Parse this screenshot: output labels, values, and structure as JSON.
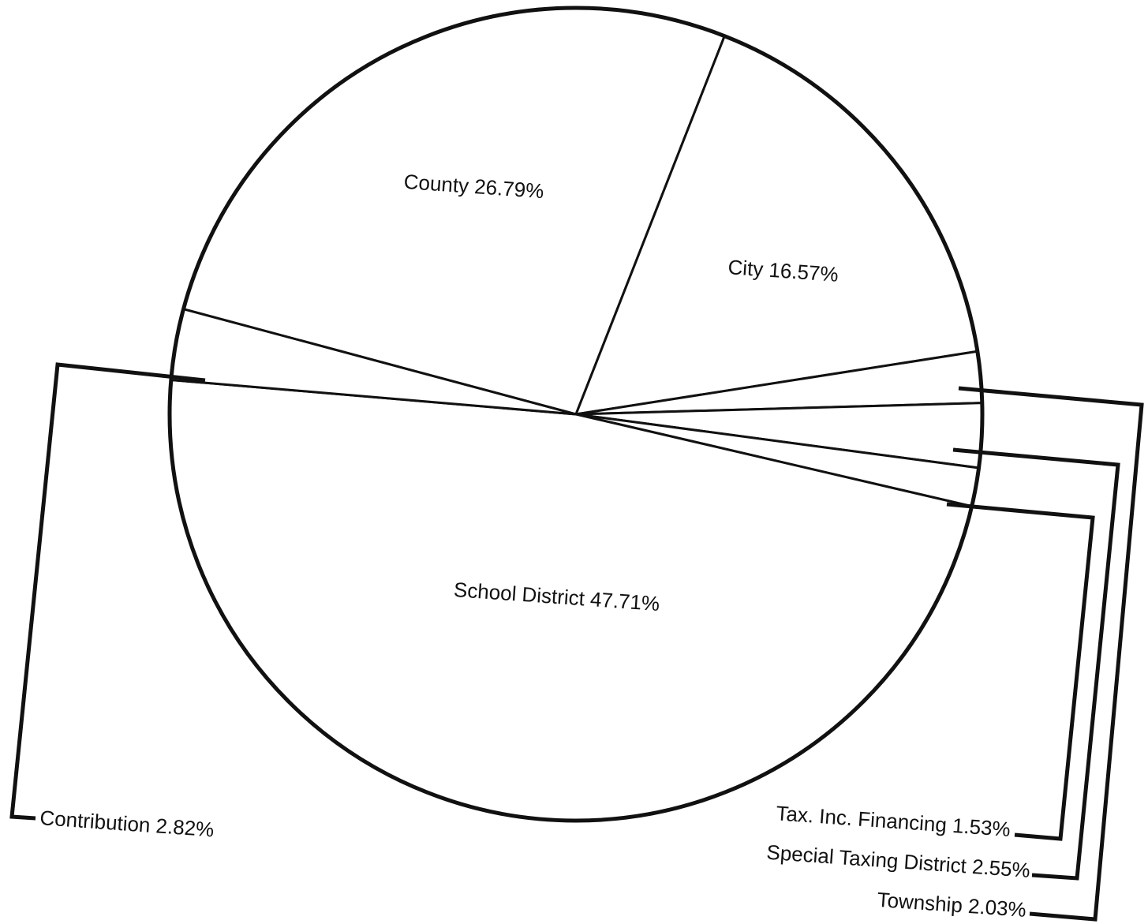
{
  "chart_data": {
    "type": "pie",
    "slices": [
      {
        "label": "County 26.79%",
        "name": "County",
        "value": 26.79
      },
      {
        "label": "City 16.57%",
        "name": "City",
        "value": 16.57
      },
      {
        "label": "Township 2.03%",
        "name": "Township",
        "value": 2.03
      },
      {
        "label": "Special Taxing District 2.55%",
        "name": "Special Taxing District",
        "value": 2.55
      },
      {
        "label": "Tax. Inc. Financing  1.53%",
        "name": "Tax. Inc. Financing",
        "value": 1.53
      },
      {
        "label": "School District 47.71%",
        "name": "School District",
        "value": 47.71
      },
      {
        "label": "Contribution 2.82%",
        "name": "Contribution",
        "value": 2.82
      }
    ],
    "colors": {
      "ink": "#111111",
      "fill": "#ffffff"
    }
  }
}
